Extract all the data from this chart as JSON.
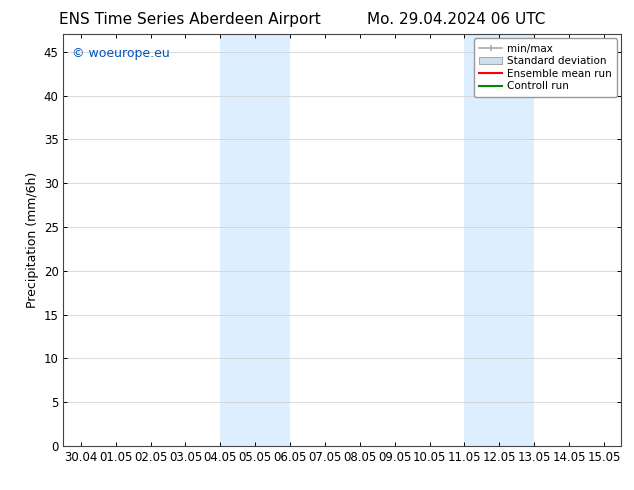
{
  "title_left": "ENS Time Series Aberdeen Airport",
  "title_right": "Mo. 29.04.2024 06 UTC",
  "ylabel": "Precipitation (mm/6h)",
  "xlabel": "",
  "background_color": "#ffffff",
  "plot_bg_color": "#ffffff",
  "ylim": [
    0,
    47
  ],
  "yticks": [
    0,
    5,
    10,
    15,
    20,
    25,
    30,
    35,
    40,
    45
  ],
  "xtick_labels": [
    "30.04",
    "01.05",
    "02.05",
    "03.05",
    "04.05",
    "05.05",
    "06.05",
    "07.05",
    "08.05",
    "09.05",
    "10.05",
    "11.05",
    "12.05",
    "13.05",
    "14.05",
    "15.05"
  ],
  "xtick_positions": [
    0,
    1,
    2,
    3,
    4,
    5,
    6,
    7,
    8,
    9,
    10,
    11,
    12,
    13,
    14,
    15
  ],
  "xlim": [
    -0.5,
    15.5
  ],
  "shaded_regions": [
    {
      "xmin": 4.0,
      "xmax": 6.0,
      "color": "#ddeeff"
    },
    {
      "xmin": 11.0,
      "xmax": 13.0,
      "color": "#ddeeff"
    }
  ],
  "watermark_text": "© woeurope.eu",
  "watermark_color": "#0055bb",
  "legend_labels": [
    "min/max",
    "Standard deviation",
    "Ensemble mean run",
    "Controll run"
  ],
  "legend_line_color": "#aaaaaa",
  "legend_std_facecolor": "#cce0f0",
  "legend_std_edgecolor": "#999999",
  "legend_ens_color": "#ff0000",
  "legend_ctrl_color": "#008800",
  "title_fontsize": 11,
  "tick_label_fontsize": 8.5,
  "ylabel_fontsize": 9,
  "watermark_fontsize": 9
}
